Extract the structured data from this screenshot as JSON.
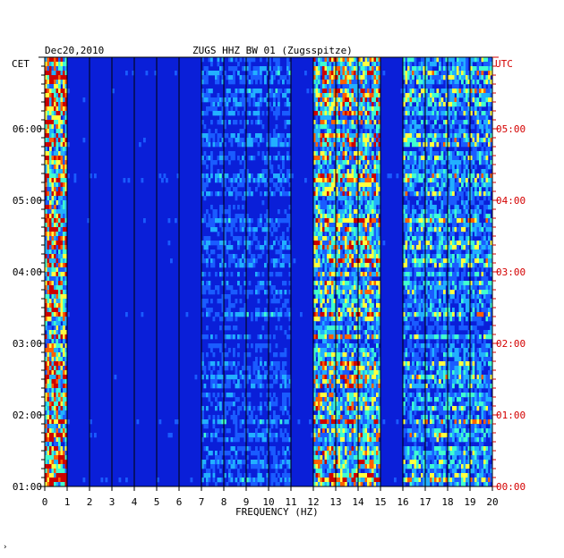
{
  "header": {
    "date": "Dec20,2010",
    "station": "ZUGS HHZ BW 01 (Zugsspitze)",
    "left_timezone": "CET",
    "right_timezone": "UTC"
  },
  "footer": {
    "mark": "›"
  },
  "colors": {
    "background": "#0a1fd8",
    "grid": "#000000",
    "utc_label": "#d40000",
    "cet_label": "#000000"
  },
  "chart_data": {
    "type": "heatmap",
    "title": "ZUGS HHZ BW 01 (Zugsspitze)",
    "xlabel": "FREQUENCY (HZ)",
    "ylabel": "",
    "xlim": [
      0,
      20
    ],
    "x_ticks": [
      "0",
      "1",
      "2",
      "3",
      "4",
      "5",
      "6",
      "7",
      "8",
      "9",
      "10",
      "11",
      "12",
      "13",
      "14",
      "15",
      "16",
      "17",
      "18",
      "19",
      "20"
    ],
    "y_ticks_left": [
      "06:00",
      "05:00",
      "04:00",
      "03:00",
      "02:00",
      "01:00"
    ],
    "y_ticks_right": [
      "05:00",
      "04:00",
      "03:00",
      "02:00",
      "01:00",
      "00:00"
    ],
    "colormap": [
      "#0000aa",
      "#0a1fd8",
      "#1a5cff",
      "#22b0ff",
      "#40ffd0",
      "#ffff40",
      "#ff6000",
      "#cc0000"
    ],
    "bands": [
      {
        "name": "0-1 Hz",
        "range": [
          0,
          1
        ],
        "intensity": 0.95
      },
      {
        "name": "7-11 Hz",
        "range": [
          7,
          11
        ],
        "intensity": 0.35
      },
      {
        "name": "12-15 Hz",
        "range": [
          12,
          15
        ],
        "intensity": 0.75
      },
      {
        "name": "16-20 Hz",
        "range": [
          16,
          20
        ],
        "intensity": 0.55
      }
    ]
  }
}
